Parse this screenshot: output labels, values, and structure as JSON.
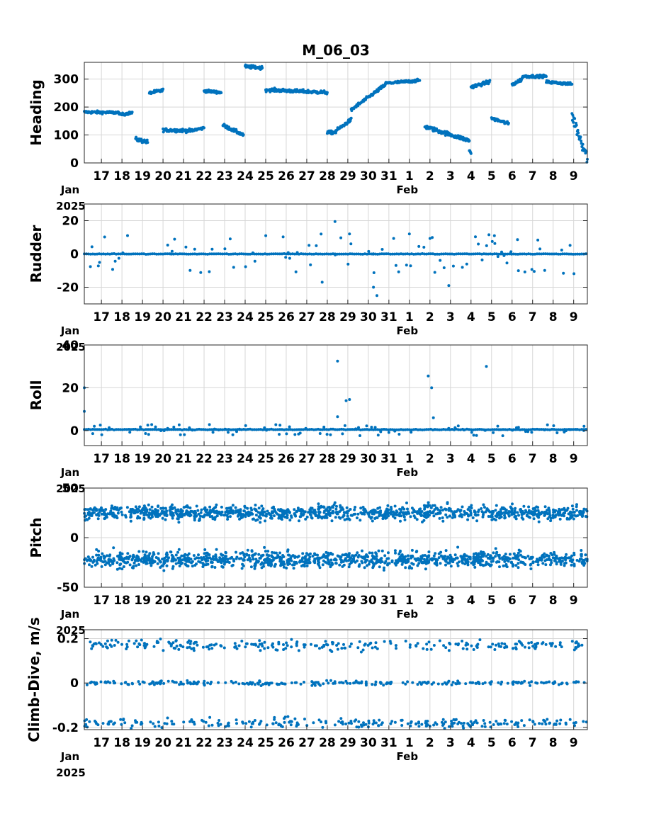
{
  "figure": {
    "title": "M_06_03"
  },
  "chart_data": [
    {
      "type": "scatter",
      "ylabel": "Heading",
      "ylim": [
        0,
        360
      ],
      "yticks": [
        0,
        100,
        200,
        300
      ],
      "color": "#0072BD",
      "xlim": [
        "2025-01-16T04:00",
        "2025-02-09T16:00"
      ],
      "xtick_labels": [
        "17",
        "18",
        "19",
        "20",
        "21",
        "22",
        "23",
        "24",
        "25",
        "26",
        "27",
        "28",
        "29",
        "30",
        "31",
        "1",
        "2",
        "3",
        "4",
        "5",
        "6",
        "7",
        "8",
        "9"
      ],
      "x_sub_labels": [
        "Jan\n2025",
        "Feb"
      ],
      "grid": true,
      "segments": [
        {
          "x0": "2025-01-16T04:00",
          "x1": "2025-01-17T21:00",
          "y0": 182,
          "y1": 180,
          "spread": 8
        },
        {
          "x0": "2025-01-17T21:00",
          "x1": "2025-01-18T12:00",
          "y0": 172,
          "y1": 180,
          "spread": 8
        },
        {
          "x0": "2025-01-18T16:00",
          "x1": "2025-01-19T06:00",
          "y0": 85,
          "y1": 75,
          "spread": 12
        },
        {
          "x0": "2025-01-19T08:00",
          "x1": "2025-01-20T00:00",
          "y0": 250,
          "y1": 260,
          "spread": 10
        },
        {
          "x0": "2025-01-20T00:00",
          "x1": "2025-01-21T12:00",
          "y0": 118,
          "y1": 115,
          "spread": 10
        },
        {
          "x0": "2025-01-21T12:00",
          "x1": "2025-01-22T00:00",
          "y0": 118,
          "y1": 125,
          "spread": 8
        },
        {
          "x0": "2025-01-22T00:00",
          "x1": "2025-01-22T20:00",
          "y0": 258,
          "y1": 252,
          "spread": 8
        },
        {
          "x0": "2025-01-22T22:00",
          "x1": "2025-01-23T22:00",
          "y0": 135,
          "y1": 100,
          "spread": 10
        },
        {
          "x0": "2025-01-24T00:00",
          "x1": "2025-01-24T20:00",
          "y0": 345,
          "y1": 340,
          "spread": 10
        },
        {
          "x0": "2025-01-25T00:00",
          "x1": "2025-01-28T00:00",
          "y0": 262,
          "y1": 252,
          "spread": 10
        },
        {
          "x0": "2025-01-28T00:00",
          "x1": "2025-01-28T10:00",
          "y0": 108,
          "y1": 110,
          "spread": 10
        },
        {
          "x0": "2025-01-28T10:00",
          "x1": "2025-01-29T04:00",
          "y0": 115,
          "y1": 155,
          "spread": 10
        },
        {
          "x0": "2025-01-29T04:00",
          "x1": "2025-01-30T20:00",
          "y0": 190,
          "y1": 280,
          "spread": 10
        },
        {
          "x0": "2025-01-30T20:00",
          "x1": "2025-02-01T12:00",
          "y0": 285,
          "y1": 295,
          "spread": 8
        },
        {
          "x0": "2025-02-01T18:00",
          "x1": "2025-02-03T22:00",
          "y0": 130,
          "y1": 80,
          "spread": 12
        },
        {
          "x0": "2025-02-03T22:00",
          "x1": "2025-02-04T00:00",
          "y0": 45,
          "y1": 35,
          "spread": 6
        },
        {
          "x0": "2025-02-04T00:00",
          "x1": "2025-02-04T22:00",
          "y0": 272,
          "y1": 290,
          "spread": 10
        },
        {
          "x0": "2025-02-05T00:00",
          "x1": "2025-02-05T20:00",
          "y0": 160,
          "y1": 140,
          "spread": 10
        },
        {
          "x0": "2025-02-06T00:00",
          "x1": "2025-02-06T12:00",
          "y0": 280,
          "y1": 300,
          "spread": 10
        },
        {
          "x0": "2025-02-06T12:00",
          "x1": "2025-02-07T16:00",
          "y0": 310,
          "y1": 310,
          "spread": 8
        },
        {
          "x0": "2025-02-07T16:00",
          "x1": "2025-02-08T22:00",
          "y0": 290,
          "y1": 282,
          "spread": 8
        },
        {
          "x0": "2025-02-08T22:00",
          "x1": "2025-02-09T16:00",
          "y0": 170,
          "y1": 20,
          "spread": 40
        }
      ]
    },
    {
      "type": "scatter",
      "ylabel": "Rudder",
      "ylim": [
        -30,
        30
      ],
      "yticks": [
        -20,
        0,
        20
      ],
      "color": "#0072BD",
      "baseline": 0,
      "noise_range": [
        -12,
        12
      ],
      "outliers": [
        {
          "x": "2025-01-28T09:00",
          "y": 19.5
        },
        {
          "x": "2025-01-27T18:00",
          "y": -17
        },
        {
          "x": "2025-01-30T06:00",
          "y": -20
        },
        {
          "x": "2025-01-30T10:00",
          "y": -25
        },
        {
          "x": "2025-02-02T22:00",
          "y": -19
        },
        {
          "x": "2025-02-01T00:00",
          "y": 12
        },
        {
          "x": "2025-01-29T02:00",
          "y": 12
        }
      ]
    },
    {
      "type": "scatter",
      "ylabel": "Roll",
      "ylim": [
        -7,
        40
      ],
      "yticks": [
        0,
        20,
        40
      ],
      "color": "#0072BD",
      "baseline": 0.5,
      "noise_range": [
        -2.5,
        3
      ],
      "outliers": [
        {
          "x": "2025-01-16T04:00",
          "y": 20
        },
        {
          "x": "2025-01-16T04:00",
          "y": 9
        },
        {
          "x": "2025-01-28T12:00",
          "y": 32.5
        },
        {
          "x": "2025-01-28T22:00",
          "y": 14
        },
        {
          "x": "2025-01-29T02:00",
          "y": 14.5
        },
        {
          "x": "2025-02-01T22:00",
          "y": 25.5
        },
        {
          "x": "2025-02-02T02:00",
          "y": 20
        },
        {
          "x": "2025-02-04T18:00",
          "y": 30
        },
        {
          "x": "2025-01-28T12:00",
          "y": 6.5
        },
        {
          "x": "2025-02-02T04:00",
          "y": 6
        }
      ]
    },
    {
      "type": "scatter",
      "ylabel": "Pitch",
      "ylim": [
        -50,
        50
      ],
      "yticks": [
        -50,
        0,
        50
      ],
      "color": "#0072BD",
      "bands": [
        {
          "center": 25,
          "spread": 9
        },
        {
          "center": -22,
          "spread": 10
        }
      ]
    },
    {
      "type": "scatter",
      "ylabel": "Climb-Dive, m/s",
      "ylim": [
        -0.21,
        0.24
      ],
      "yticks": [
        -0.2,
        0,
        0.2
      ],
      "color": "#0072BD",
      "bands": [
        {
          "center": 0.17,
          "spread": 0.03
        },
        {
          "center": 0,
          "spread": 0.012
        },
        {
          "center": -0.18,
          "spread": 0.025
        }
      ]
    }
  ]
}
